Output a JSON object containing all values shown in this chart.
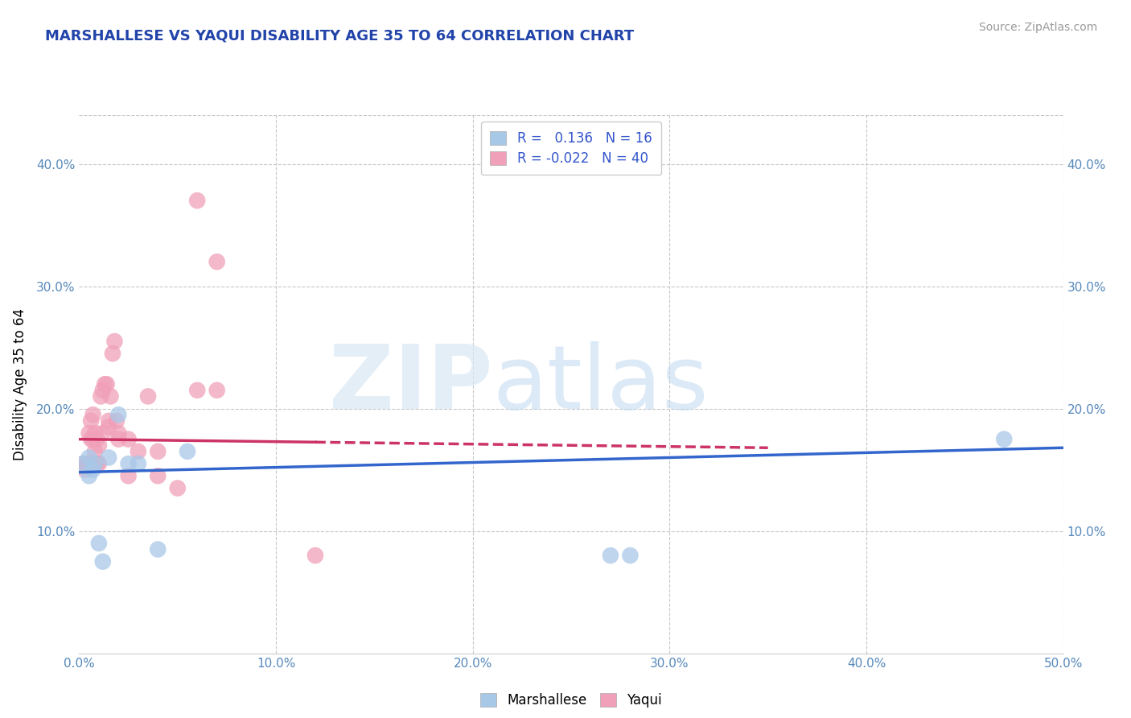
{
  "title": "MARSHALLESE VS YAQUI DISABILITY AGE 35 TO 64 CORRELATION CHART",
  "source": "Source: ZipAtlas.com",
  "ylabel": "Disability Age 35 to 64",
  "xlim": [
    0.0,
    0.5
  ],
  "ylim": [
    0.0,
    0.44
  ],
  "xticks": [
    0.0,
    0.1,
    0.2,
    0.3,
    0.4,
    0.5
  ],
  "yticks": [
    0.1,
    0.2,
    0.3,
    0.4
  ],
  "xtick_labels": [
    "0.0%",
    "10.0%",
    "20.0%",
    "30.0%",
    "40.0%",
    "50.0%"
  ],
  "ytick_labels": [
    "10.0%",
    "20.0%",
    "30.0%",
    "40.0%"
  ],
  "background_color": "#ffffff",
  "grid_color": "#c8c8c8",
  "marshallese_color": "#a8c8e8",
  "yaqui_color": "#f0a0b8",
  "marshallese_line_color": "#3366cc",
  "yaqui_line_color": "#cc3366",
  "marshallese_x": [
    0.002,
    0.005,
    0.005,
    0.007,
    0.008,
    0.01,
    0.012,
    0.015,
    0.02,
    0.025,
    0.03,
    0.04,
    0.055,
    0.27,
    0.28,
    0.47
  ],
  "marshallese_y": [
    0.155,
    0.145,
    0.16,
    0.15,
    0.155,
    0.09,
    0.075,
    0.16,
    0.195,
    0.155,
    0.155,
    0.085,
    0.165,
    0.08,
    0.08,
    0.175
  ],
  "yaqui_x": [
    0.002,
    0.003,
    0.004,
    0.005,
    0.005,
    0.006,
    0.006,
    0.007,
    0.007,
    0.008,
    0.008,
    0.009,
    0.009,
    0.01,
    0.01,
    0.011,
    0.012,
    0.012,
    0.013,
    0.014,
    0.015,
    0.015,
    0.016,
    0.017,
    0.018,
    0.019,
    0.02,
    0.02,
    0.025,
    0.025,
    0.03,
    0.035,
    0.04,
    0.04,
    0.05,
    0.06,
    0.06,
    0.07,
    0.07,
    0.12
  ],
  "yaqui_y": [
    0.155,
    0.15,
    0.155,
    0.155,
    0.18,
    0.175,
    0.19,
    0.175,
    0.195,
    0.165,
    0.18,
    0.155,
    0.175,
    0.155,
    0.17,
    0.21,
    0.18,
    0.215,
    0.22,
    0.22,
    0.185,
    0.19,
    0.21,
    0.245,
    0.255,
    0.19,
    0.175,
    0.18,
    0.175,
    0.145,
    0.165,
    0.21,
    0.145,
    0.165,
    0.135,
    0.215,
    0.37,
    0.32,
    0.215,
    0.08
  ],
  "marsh_line_x0": 0.0,
  "marsh_line_x1": 0.5,
  "marsh_line_y0": 0.148,
  "marsh_line_y1": 0.168,
  "yaqui_line_x0": 0.0,
  "yaqui_line_x1": 0.35,
  "yaqui_line_y0": 0.175,
  "yaqui_line_y1": 0.168
}
